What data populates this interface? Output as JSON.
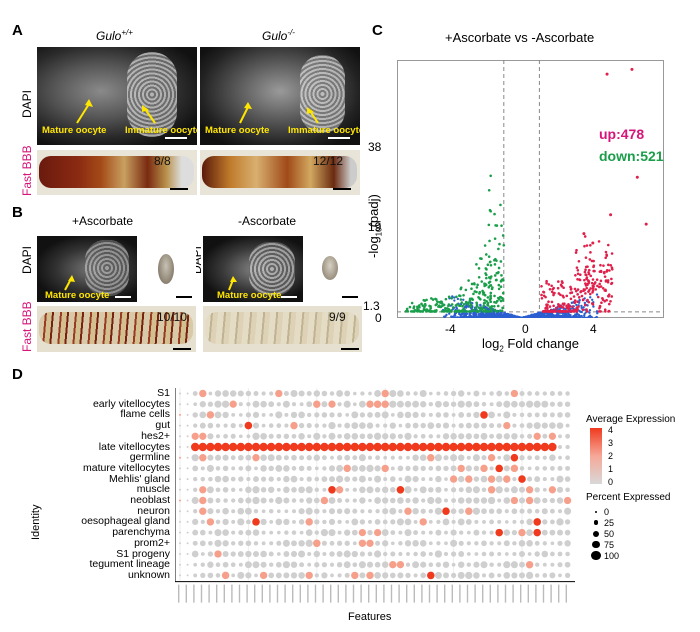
{
  "panel_labels": {
    "a": "A",
    "b": "B",
    "c": "C",
    "d": "D"
  },
  "panel_a": {
    "genotype_wt_base": "Gulo",
    "genotype_wt_sup": "+/+",
    "genotype_ko_base": "Gulo",
    "genotype_ko_sup": "-/-",
    "stain_dapi": "DAPI",
    "stain_fastbbb": "Fast BBB",
    "label_mature": "Mature oocyte",
    "label_immature": "Immature oocyte",
    "frac_wt": "8/8",
    "frac_ko": "12/12"
  },
  "panel_b": {
    "cond_plus": "+Ascorbate",
    "cond_minus": "-Ascorbate",
    "stain_dapi": "DAPI",
    "stain_fastbbb": "Fast BBB",
    "label_mature": "Mature oocyte",
    "frac_plus": "10/10",
    "frac_minus": "9/9"
  },
  "colors": {
    "up": "#e0204a",
    "down": "#1a9e4a",
    "ns": "#2b5fd0",
    "magenta_label": "#d6157a",
    "dot_high": "#f03a1e",
    "dot_low": "#cfcfcf"
  },
  "chart_data": [
    {
      "type": "scatter",
      "title": "+Ascorbate vs -Ascorbate",
      "xlabel_base": "log",
      "xlabel_sub": "2",
      "xlabel_rest": " Fold change",
      "ylabel_base": "-log",
      "ylabel_sub": "10",
      "ylabel_rest": "(padj)",
      "x_ticks": [
        "-4",
        "0",
        "4"
      ],
      "y_ticks": [
        "0",
        "1.3",
        "19",
        "38"
      ],
      "up_label": "up:478",
      "down_label": "down:521",
      "up_count": 478,
      "down_count": 521,
      "thresholds": {
        "log2fc": [
          -1,
          1
        ],
        "neg_log10_padj": 1.3
      },
      "xlim": [
        -7,
        8
      ],
      "ylim": [
        0,
        55
      ]
    },
    {
      "type": "heatmap",
      "subtype": "dotplot",
      "xlabel": "Features",
      "ylabel": "Identity",
      "identities": [
        "S1",
        "early vitellocytes",
        "flame cells",
        "gut",
        "hes2+",
        "late vitellocytes",
        "germline",
        "mature vitellocytes",
        "Mehlis' gland",
        "muscle",
        "neoblast",
        "neuron",
        "oesophageal gland",
        "parenchyma",
        "prom2+",
        "S1 progeny",
        "tegument lineage",
        "unknown"
      ],
      "legend_expr_title": "Average Expression",
      "legend_expr_ticks": [
        "4",
        "3",
        "2",
        "1",
        "0"
      ],
      "legend_pct_title": "Percent Expressed",
      "legend_pct_values": [
        "0",
        "25",
        "50",
        "75",
        "100"
      ],
      "feature_count": 52
    }
  ]
}
